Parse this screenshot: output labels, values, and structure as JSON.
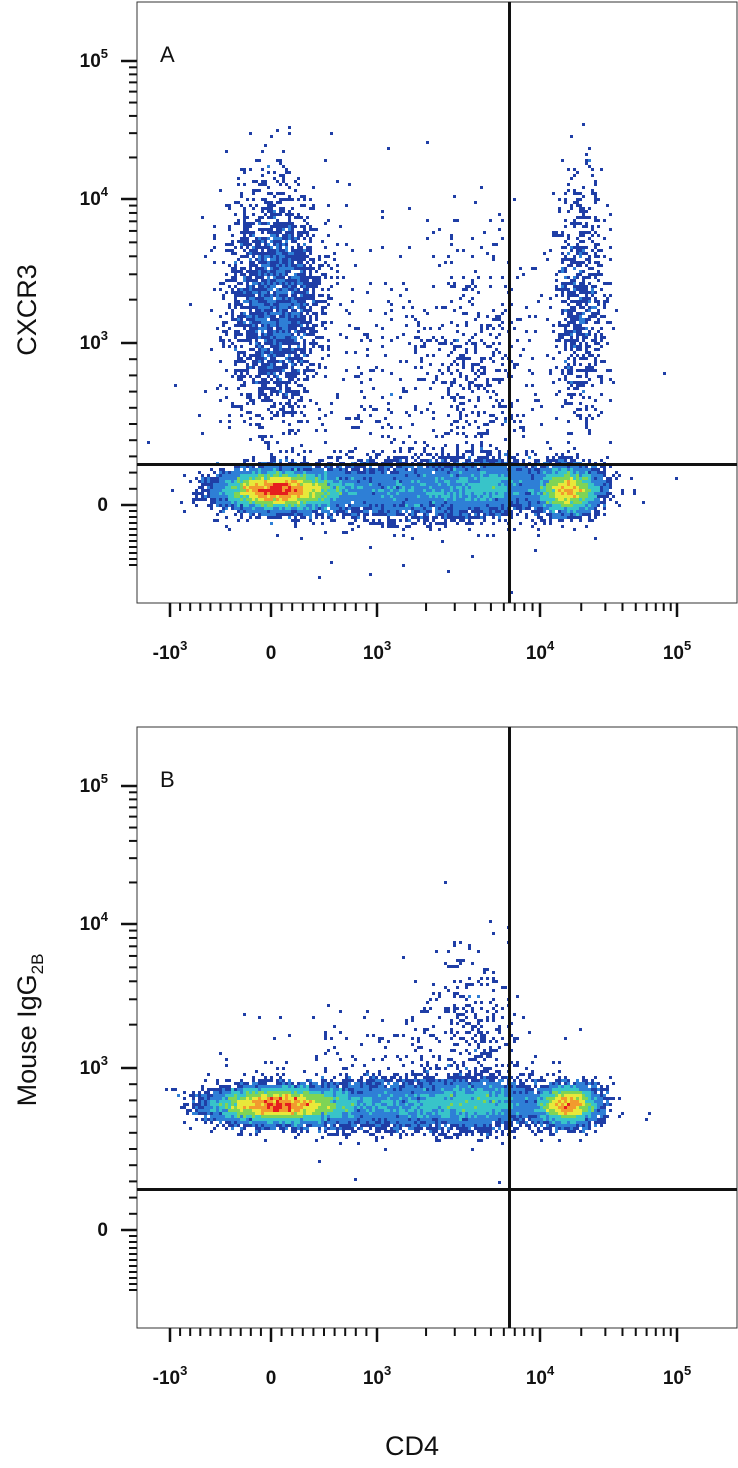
{
  "chart_data": [
    {
      "type": "scatter",
      "panel_label": "A",
      "title": "",
      "xlabel": "CD4",
      "ylabel": "CXCR3",
      "ylabel_sub": "",
      "x_scale": "biexponential",
      "y_scale": "biexponential",
      "xlim": [
        -2000,
        150000
      ],
      "ylim": [
        -1500,
        200000
      ],
      "x_ticks": [
        {
          "base": "-10",
          "exp": "3",
          "value": -1000
        },
        {
          "base": "0",
          "exp": "",
          "value": 0
        },
        {
          "base": "10",
          "exp": "3",
          "value": 1000
        },
        {
          "base": "10",
          "exp": "4",
          "value": 10000
        },
        {
          "base": "10",
          "exp": "5",
          "value": 100000
        }
      ],
      "y_ticks": [
        {
          "base": "0",
          "exp": "",
          "value": 0
        },
        {
          "base": "10",
          "exp": "3",
          "value": 1000
        },
        {
          "base": "10",
          "exp": "4",
          "value": 10000
        },
        {
          "base": "10",
          "exp": "5",
          "value": 100000
        }
      ],
      "quadrant_gate": {
        "x": 6500,
        "y": 250
      },
      "populations": [
        {
          "name": "CD4- CXCR3-",
          "x_center": 120,
          "y_center": 10,
          "density": "high"
        },
        {
          "name": "CD4+ CXCR3-",
          "x_center": 15500,
          "y_center": 10,
          "density": "high"
        },
        {
          "name": "CD4- CXCR3+",
          "x_center": 150,
          "y_center": 2200,
          "density": "medium"
        },
        {
          "name": "CD4+ CXCR3+",
          "x_center": 17000,
          "y_center": 1800,
          "density": "low"
        },
        {
          "name": "bridge",
          "x_center": 2500,
          "y_center": 10,
          "density": "medium"
        }
      ],
      "grid": false,
      "colormap": [
        "#1f3ea6",
        "#2e7fd6",
        "#38c4c9",
        "#7fd455",
        "#e8e83a",
        "#f29a2e",
        "#e51e1e"
      ]
    },
    {
      "type": "scatter",
      "panel_label": "B",
      "title": "",
      "xlabel": "CD4",
      "ylabel": "Mouse IgG",
      "ylabel_sub": "2B",
      "x_scale": "biexponential",
      "y_scale": "biexponential",
      "xlim": [
        -2000,
        150000
      ],
      "ylim": [
        -1500,
        200000
      ],
      "x_ticks": [
        {
          "base": "-10",
          "exp": "3",
          "value": -1000
        },
        {
          "base": "0",
          "exp": "",
          "value": 0
        },
        {
          "base": "10",
          "exp": "3",
          "value": 1000
        },
        {
          "base": "10",
          "exp": "4",
          "value": 10000
        },
        {
          "base": "10",
          "exp": "5",
          "value": 100000
        }
      ],
      "y_ticks": [
        {
          "base": "0",
          "exp": "",
          "value": 0
        },
        {
          "base": "10",
          "exp": "3",
          "value": 1000
        },
        {
          "base": "10",
          "exp": "4",
          "value": 10000
        },
        {
          "base": "10",
          "exp": "5",
          "value": 100000
        }
      ],
      "quadrant_gate": {
        "x": 6500,
        "y": 250
      },
      "populations": [
        {
          "name": "CD4- isotype-",
          "x_center": 150,
          "y_center": 10,
          "density": "high"
        },
        {
          "name": "CD4+ isotype-",
          "x_center": 15500,
          "y_center": 10,
          "density": "high"
        },
        {
          "name": "bridge",
          "x_center": 2500,
          "y_center": 10,
          "density": "medium"
        },
        {
          "name": "scatter above",
          "x_center": 4000,
          "y_center": 500,
          "density": "low"
        }
      ],
      "grid": false,
      "colormap": [
        "#1f3ea6",
        "#2e7fd6",
        "#38c4c9",
        "#7fd455",
        "#e8e83a",
        "#f29a2e",
        "#e51e1e"
      ]
    }
  ],
  "shared_xlabel": "CD4"
}
